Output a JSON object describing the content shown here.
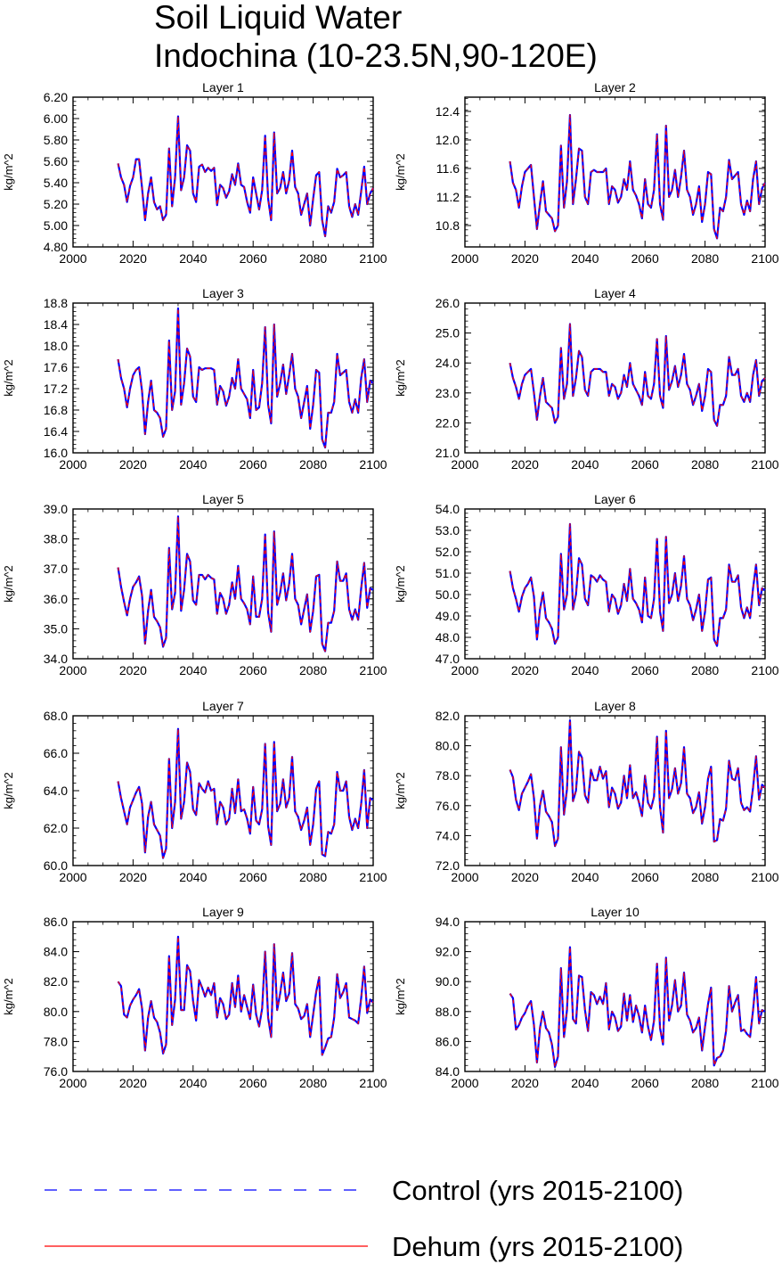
{
  "figure": {
    "title_line1": "Soil Liquid Water",
    "title_line2": "Indochina (10-23.5N,90-120E)"
  },
  "legend": {
    "placement": "bottom",
    "entries": [
      {
        "label": "Control (yrs 2015-2100)",
        "style": "dashed",
        "color": "#0000ff"
      },
      {
        "label": "Dehum (yrs 2015-2100)",
        "style": "solid",
        "color": "#ff0000"
      }
    ]
  },
  "colors": {
    "control": "#0000ff",
    "dehum": "#ff0000",
    "axis": "#000000"
  },
  "chart_data": [
    {
      "type": "line",
      "title": "Layer 1",
      "xlabel": "",
      "ylabel": "kg/m^2",
      "xlim": [
        2000,
        2100
      ],
      "ylim": [
        4.8,
        6.2
      ],
      "xticks": [
        "2000",
        "2020",
        "2040",
        "2060",
        "2080",
        "2100"
      ],
      "yticks": [
        "4.80",
        "5.00",
        "5.20",
        "5.40",
        "5.60",
        "5.80",
        "6.00",
        "6.20"
      ],
      "x_start": 2015,
      "series": [
        {
          "name": "Control (yrs 2015-2100)",
          "same_as": "Dehum"
        }
      ],
      "values": [
        5.58,
        5.45,
        5.38,
        5.22,
        5.37,
        5.45,
        5.62,
        5.62,
        5.35,
        5.05,
        5.3,
        5.45,
        5.22,
        5.15,
        5.18,
        5.05,
        5.1,
        5.72,
        5.18,
        5.45,
        6.02,
        5.33,
        5.45,
        5.75,
        5.7,
        5.3,
        5.22,
        5.55,
        5.57,
        5.5,
        5.54,
        5.51,
        5.54,
        5.19,
        5.38,
        5.35,
        5.26,
        5.32,
        5.48,
        5.38,
        5.58,
        5.38,
        5.36,
        5.22,
        5.12,
        5.45,
        5.3,
        5.15,
        5.33,
        5.84,
        5.25,
        5.05,
        5.87,
        5.3,
        5.35,
        5.5,
        5.3,
        5.42,
        5.7,
        5.36,
        5.3,
        5.1,
        5.2,
        5.3,
        5.0,
        5.25,
        5.47,
        5.5,
        5.05,
        4.9,
        5.18,
        5.12,
        5.22,
        5.53,
        5.45,
        5.47,
        5.5,
        5.18,
        5.08,
        5.2,
        5.1,
        5.32,
        5.55,
        5.2,
        5.3,
        5.35
      ]
    },
    {
      "type": "line",
      "title": "Layer 2",
      "xlabel": "",
      "ylabel": "kg/m^2",
      "xlim": [
        2000,
        2100
      ],
      "ylim": [
        10.5,
        12.6
      ],
      "xticks": [
        "2000",
        "2020",
        "2040",
        "2060",
        "2080",
        "2100"
      ],
      "yticks": [
        "10.8",
        "11.2",
        "11.6",
        "12.0",
        "12.4"
      ],
      "x_start": 2015,
      "values": [
        11.7,
        11.4,
        11.3,
        11.05,
        11.35,
        11.55,
        11.6,
        11.65,
        11.2,
        10.75,
        11.1,
        11.42,
        11.0,
        10.95,
        10.9,
        10.72,
        10.8,
        11.92,
        11.05,
        11.42,
        12.35,
        11.1,
        11.45,
        11.88,
        11.85,
        11.2,
        11.1,
        11.55,
        11.58,
        11.55,
        11.55,
        11.55,
        11.6,
        11.1,
        11.35,
        11.3,
        11.12,
        11.2,
        11.45,
        11.3,
        11.7,
        11.3,
        11.22,
        11.1,
        10.9,
        11.45,
        11.1,
        11.05,
        11.3,
        12.08,
        11.1,
        10.88,
        12.2,
        11.2,
        11.3,
        11.58,
        11.2,
        11.48,
        11.85,
        11.3,
        11.2,
        10.95,
        11.1,
        11.35,
        10.85,
        11.1,
        11.55,
        11.52,
        10.75,
        10.62,
        11.05,
        11.0,
        11.2,
        11.72,
        11.45,
        11.5,
        11.55,
        11.1,
        10.95,
        11.15,
        11.0,
        11.45,
        11.7,
        11.1,
        11.32,
        11.4
      ]
    },
    {
      "type": "line",
      "title": "Layer 3",
      "xlabel": "",
      "ylabel": "kg/m^2",
      "xlim": [
        2000,
        2100
      ],
      "ylim": [
        16.0,
        18.8
      ],
      "xticks": [
        "2000",
        "2020",
        "2040",
        "2060",
        "2080",
        "2100"
      ],
      "yticks": [
        "16.0",
        "16.4",
        "16.8",
        "17.2",
        "17.6",
        "18.0",
        "18.4",
        "18.8"
      ],
      "x_start": 2015,
      "values": [
        17.75,
        17.4,
        17.2,
        16.85,
        17.2,
        17.45,
        17.55,
        17.6,
        17.15,
        16.35,
        16.95,
        17.35,
        16.8,
        16.75,
        16.65,
        16.3,
        16.45,
        18.1,
        16.8,
        17.15,
        18.7,
        16.9,
        17.3,
        17.95,
        17.8,
        17.05,
        16.95,
        17.6,
        17.55,
        17.58,
        17.58,
        17.58,
        17.55,
        16.9,
        17.25,
        17.15,
        16.88,
        17.05,
        17.4,
        17.2,
        17.75,
        17.2,
        17.1,
        17.0,
        16.65,
        17.55,
        16.8,
        16.85,
        17.3,
        18.35,
        16.9,
        16.55,
        18.4,
        17.05,
        17.3,
        17.65,
        17.1,
        17.45,
        17.85,
        17.2,
        17.05,
        16.65,
        16.95,
        17.25,
        16.45,
        16.9,
        17.55,
        17.5,
        16.25,
        16.1,
        16.75,
        16.75,
        16.95,
        17.85,
        17.45,
        17.5,
        17.55,
        16.95,
        16.75,
        17.0,
        16.75,
        17.4,
        17.75,
        16.95,
        17.35,
        17.3
      ]
    },
    {
      "type": "line",
      "title": "Layer 4",
      "xlabel": "",
      "ylabel": "kg/m^2",
      "xlim": [
        2000,
        2100
      ],
      "ylim": [
        21.0,
        26.0
      ],
      "xticks": [
        "2000",
        "2020",
        "2040",
        "2060",
        "2080",
        "2100"
      ],
      "yticks": [
        "21.0",
        "22.0",
        "23.0",
        "24.0",
        "25.0",
        "26.0"
      ],
      "x_start": 2015,
      "values": [
        24.0,
        23.5,
        23.2,
        22.8,
        23.3,
        23.6,
        23.7,
        23.8,
        23.0,
        22.1,
        22.9,
        23.5,
        22.7,
        22.6,
        22.5,
        22.0,
        22.2,
        24.5,
        22.8,
        23.3,
        25.3,
        22.9,
        23.5,
        24.4,
        24.2,
        23.1,
        22.9,
        23.7,
        23.8,
        23.8,
        23.8,
        23.7,
        23.7,
        22.9,
        23.3,
        23.2,
        22.8,
        23.0,
        23.6,
        23.2,
        24.0,
        23.3,
        23.1,
        22.9,
        22.6,
        23.7,
        22.9,
        22.8,
        23.3,
        24.8,
        22.9,
        22.5,
        24.9,
        23.1,
        23.4,
        23.9,
        23.2,
        23.6,
        24.3,
        23.3,
        23.1,
        22.6,
        22.9,
        23.3,
        22.4,
        22.9,
        23.8,
        23.7,
        22.1,
        21.9,
        22.6,
        22.6,
        22.9,
        24.2,
        23.6,
        23.6,
        23.8,
        22.9,
        22.7,
        23.0,
        22.7,
        23.6,
        24.1,
        22.9,
        23.4,
        23.5
      ]
    },
    {
      "type": "line",
      "title": "Layer 5",
      "xlabel": "",
      "ylabel": "kg/m^2",
      "xlim": [
        2000,
        2100
      ],
      "ylim": [
        34.0,
        39.0
      ],
      "xticks": [
        "2000",
        "2020",
        "2040",
        "2060",
        "2080",
        "2100"
      ],
      "yticks": [
        "34.0",
        "35.0",
        "36.0",
        "37.0",
        "38.0",
        "39.0"
      ],
      "x_start": 2015,
      "values": [
        37.05,
        36.4,
        35.9,
        35.45,
        36.0,
        36.4,
        36.55,
        36.75,
        36.1,
        34.5,
        35.6,
        36.3,
        35.4,
        35.25,
        35.05,
        34.4,
        34.7,
        37.7,
        35.65,
        36.2,
        38.75,
        35.6,
        36.3,
        37.5,
        37.25,
        35.95,
        35.8,
        36.8,
        36.8,
        36.65,
        36.8,
        36.7,
        36.65,
        35.5,
        36.2,
        36.0,
        35.5,
        35.8,
        36.55,
        36.0,
        37.1,
        36.0,
        35.85,
        35.65,
        35.15,
        36.75,
        35.4,
        35.4,
        36.0,
        38.15,
        35.55,
        34.9,
        38.25,
        35.8,
        36.2,
        36.85,
        35.95,
        36.5,
        37.5,
        36.0,
        35.8,
        35.15,
        35.65,
        36.15,
        34.9,
        35.6,
        36.75,
        36.8,
        34.5,
        34.25,
        35.2,
        35.2,
        35.6,
        37.25,
        36.6,
        36.6,
        36.85,
        35.65,
        35.3,
        35.65,
        35.3,
        36.35,
        37.2,
        35.7,
        36.35,
        36.3
      ]
    },
    {
      "type": "line",
      "title": "Layer 6",
      "xlabel": "",
      "ylabel": "kg/m^2",
      "xlim": [
        2000,
        2100
      ],
      "ylim": [
        47.0,
        54.0
      ],
      "xticks": [
        "2000",
        "2020",
        "2040",
        "2060",
        "2080",
        "2100"
      ],
      "yticks": [
        "47.0",
        "48.0",
        "49.0",
        "50.0",
        "51.0",
        "52.0",
        "53.0",
        "54.0"
      ],
      "x_start": 2015,
      "values": [
        51.1,
        50.3,
        49.8,
        49.2,
        49.9,
        50.3,
        50.5,
        50.8,
        49.9,
        47.9,
        49.3,
        50.1,
        48.9,
        48.7,
        48.4,
        47.7,
        48.0,
        51.9,
        49.3,
        50.0,
        53.3,
        49.3,
        50.0,
        51.7,
        51.4,
        49.8,
        49.5,
        50.9,
        50.8,
        50.6,
        50.9,
        50.7,
        50.6,
        49.2,
        50.0,
        49.8,
        49.1,
        49.5,
        50.5,
        49.7,
        51.2,
        49.8,
        49.6,
        49.3,
        48.7,
        50.8,
        49.0,
        48.9,
        49.8,
        52.6,
        49.2,
        48.3,
        52.7,
        49.6,
        50.0,
        51.0,
        49.7,
        50.4,
        51.8,
        49.8,
        49.5,
        48.8,
        49.3,
        50.0,
        48.3,
        49.2,
        50.7,
        50.8,
        47.9,
        47.6,
        48.9,
        48.9,
        49.3,
        51.4,
        50.6,
        50.6,
        50.9,
        49.4,
        48.9,
        49.4,
        48.9,
        50.3,
        51.4,
        49.5,
        50.3,
        50.2
      ]
    },
    {
      "type": "line",
      "title": "Layer 7",
      "xlabel": "",
      "ylabel": "kg/m^2",
      "xlim": [
        2000,
        2100
      ],
      "ylim": [
        60.0,
        68.0
      ],
      "xticks": [
        "2000",
        "2020",
        "2040",
        "2060",
        "2080",
        "2100"
      ],
      "yticks": [
        "60.0",
        "62.0",
        "64.0",
        "66.0",
        "68.0"
      ],
      "x_start": 2015,
      "values": [
        64.5,
        63.6,
        62.9,
        62.2,
        63.1,
        63.5,
        63.9,
        64.2,
        63.3,
        60.7,
        62.6,
        63.4,
        62.2,
        61.9,
        61.6,
        60.4,
        60.9,
        65.7,
        62.0,
        63.4,
        67.3,
        62.5,
        63.4,
        65.5,
        65.0,
        63.0,
        62.7,
        64.4,
        64.1,
        63.9,
        64.5,
        64.0,
        64.1,
        62.2,
        63.4,
        63.1,
        62.2,
        62.5,
        64.1,
        62.8,
        64.6,
        62.9,
        63.0,
        62.5,
        61.7,
        64.2,
        62.4,
        62.2,
        63.0,
        66.5,
        62.1,
        61.1,
        66.6,
        62.9,
        63.3,
        64.6,
        63.1,
        63.6,
        65.8,
        62.9,
        62.6,
        61.9,
        62.4,
        63.1,
        61.1,
        62.2,
        64.1,
        64.5,
        60.6,
        60.5,
        61.8,
        61.7,
        62.2,
        65.0,
        64.0,
        64.0,
        64.5,
        62.6,
        61.9,
        62.5,
        62.0,
        63.3,
        65.1,
        62.0,
        63.6,
        63.5
      ]
    },
    {
      "type": "line",
      "title": "Layer 8",
      "xlabel": "",
      "ylabel": "kg/m^2",
      "xlim": [
        2000,
        2100
      ],
      "ylim": [
        72.0,
        82.0
      ],
      "xticks": [
        "2000",
        "2020",
        "2040",
        "2060",
        "2080",
        "2100"
      ],
      "yticks": [
        "72.0",
        "74.0",
        "76.0",
        "78.0",
        "80.0",
        "82.0"
      ],
      "x_start": 2015,
      "values": [
        78.4,
        77.9,
        76.4,
        75.7,
        76.8,
        77.2,
        77.6,
        78.1,
        76.5,
        73.8,
        76.0,
        77.0,
        75.6,
        75.3,
        74.9,
        73.3,
        73.8,
        79.9,
        75.4,
        77.1,
        81.7,
        76.3,
        77.0,
        79.6,
        79.2,
        76.7,
        76.2,
        78.4,
        77.7,
        77.7,
        78.6,
        77.8,
        78.3,
        75.9,
        77.2,
        76.8,
        75.8,
        76.2,
        78.0,
        76.5,
        78.7,
        76.5,
        76.9,
        76.2,
        75.3,
        78.0,
        76.2,
        75.8,
        76.6,
        80.6,
        75.9,
        74.2,
        81.0,
        76.5,
        77.1,
        78.5,
        76.8,
        77.5,
        79.9,
        76.8,
        76.5,
        75.5,
        75.9,
        76.9,
        74.8,
        75.9,
        77.8,
        78.6,
        73.6,
        73.7,
        75.1,
        75.0,
        75.8,
        79.0,
        77.8,
        77.7,
        78.5,
        76.2,
        75.7,
        75.9,
        75.6,
        77.2,
        79.3,
        76.4,
        77.4,
        77.2
      ]
    },
    {
      "type": "line",
      "title": "Layer 9",
      "xlabel": "",
      "ylabel": "kg/m^2",
      "xlim": [
        2000,
        2100
      ],
      "ylim": [
        76.0,
        86.0
      ],
      "xticks": [
        "2000",
        "2020",
        "2040",
        "2060",
        "2080",
        "2100"
      ],
      "yticks": [
        "76.0",
        "78.0",
        "80.0",
        "82.0",
        "84.0",
        "86.0"
      ],
      "x_start": 2015,
      "values": [
        82.0,
        81.7,
        79.8,
        79.6,
        80.4,
        80.8,
        81.1,
        81.5,
        80.2,
        77.4,
        79.6,
        80.7,
        79.6,
        79.3,
        78.6,
        77.2,
        77.8,
        83.7,
        79.1,
        80.8,
        85.0,
        80.1,
        80.1,
        83.1,
        82.7,
        80.7,
        79.4,
        82.1,
        81.6,
        81.0,
        81.6,
        81.1,
        81.9,
        79.6,
        80.9,
        80.5,
        79.5,
        79.8,
        81.9,
        80.3,
        82.4,
        80.0,
        81.1,
        80.3,
        79.5,
        81.8,
        79.8,
        79.0,
        80.2,
        84.0,
        79.6,
        78.3,
        84.5,
        80.1,
        81.2,
        82.6,
        80.7,
        81.2,
        83.9,
        80.5,
        80.2,
        79.5,
        79.7,
        80.5,
        78.3,
        79.8,
        81.3,
        82.3,
        77.1,
        77.6,
        78.2,
        78.3,
        79.6,
        82.5,
        80.9,
        81.3,
        81.9,
        79.6,
        79.5,
        79.4,
        79.2,
        80.9,
        83.0,
        79.9,
        80.8,
        80.6
      ]
    },
    {
      "type": "line",
      "title": "Layer 10",
      "xlabel": "",
      "ylabel": "kg/m^2",
      "xlim": [
        2000,
        2100
      ],
      "ylim": [
        84.0,
        94.0
      ],
      "xticks": [
        "2000",
        "2020",
        "2040",
        "2060",
        "2080",
        "2100"
      ],
      "yticks": [
        "84.0",
        "86.0",
        "88.0",
        "90.0",
        "92.0",
        "94.0"
      ],
      "x_start": 2015,
      "values": [
        89.2,
        88.9,
        86.8,
        87.1,
        87.6,
        87.9,
        88.4,
        88.7,
        87.1,
        84.6,
        86.9,
        88.0,
        86.9,
        86.6,
        85.8,
        84.3,
        85.0,
        90.9,
        86.3,
        88.1,
        92.3,
        87.5,
        87.2,
        90.4,
        90.3,
        88.1,
        86.7,
        89.3,
        89.1,
        88.5,
        89.0,
        88.5,
        89.9,
        86.8,
        88.0,
        87.6,
        86.7,
        87.0,
        89.2,
        87.4,
        89.1,
        87.3,
        88.4,
        87.7,
        86.6,
        88.4,
        87.0,
        86.1,
        87.4,
        91.2,
        86.9,
        85.8,
        91.6,
        87.4,
        88.4,
        90.1,
        88.0,
        88.4,
        90.6,
        87.8,
        87.4,
        86.6,
        86.9,
        87.6,
        85.4,
        87.0,
        88.5,
        89.6,
        84.4,
        84.9,
        85.0,
        85.4,
        86.7,
        89.7,
        88.0,
        88.6,
        89.1,
        86.7,
        86.8,
        86.5,
        86.3,
        88.1,
        90.3,
        87.2,
        88.1,
        88.0
      ]
    }
  ]
}
